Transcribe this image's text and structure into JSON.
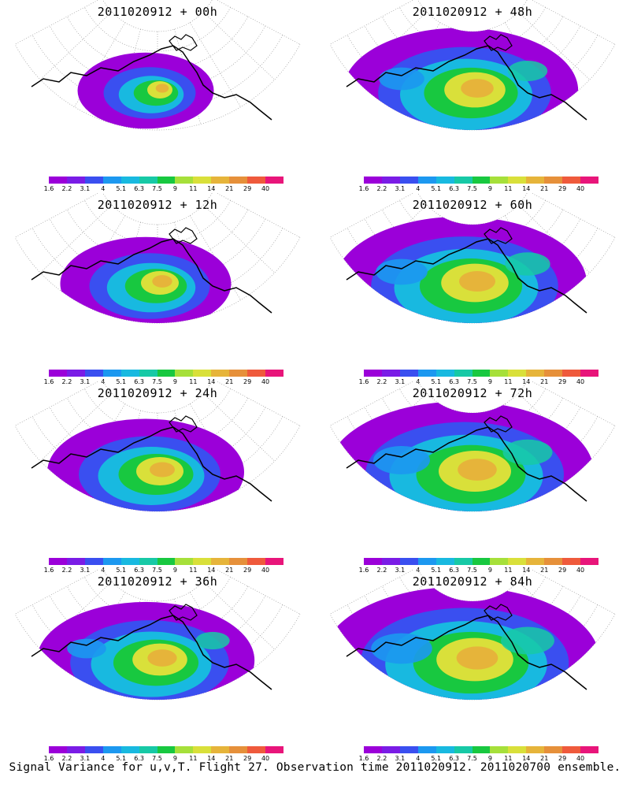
{
  "panels": [
    {
      "title": "2011020912 + 00h",
      "intensity": 0.15
    },
    {
      "title": "2011020912 + 48h",
      "intensity": 0.72
    },
    {
      "title": "2011020912 + 12h",
      "intensity": 0.35
    },
    {
      "title": "2011020912 + 60h",
      "intensity": 0.82
    },
    {
      "title": "2011020912 + 24h",
      "intensity": 0.5
    },
    {
      "title": "2011020912 + 72h",
      "intensity": 0.9
    },
    {
      "title": "2011020912 + 36h",
      "intensity": 0.62
    },
    {
      "title": "2011020912 + 84h",
      "intensity": 0.97
    }
  ],
  "colorbar": {
    "labels": [
      "1.6",
      "2.2",
      "3.1",
      "4",
      "5.1",
      "6.3",
      "7.5",
      "9",
      "11",
      "14",
      "21",
      "29",
      "40"
    ],
    "colors": [
      "#9b00d9",
      "#7a1ce6",
      "#3a4ff0",
      "#1c98f0",
      "#18b9e0",
      "#17c9a6",
      "#18c840",
      "#a6e03a",
      "#d9e03a",
      "#e6b43a",
      "#e6903a",
      "#ef5a3c",
      "#e8157a"
    ]
  },
  "caption": "Signal Variance for u,v,T. Flight 27. Observation time 2011020912. 2011020700 ensemble."
}
